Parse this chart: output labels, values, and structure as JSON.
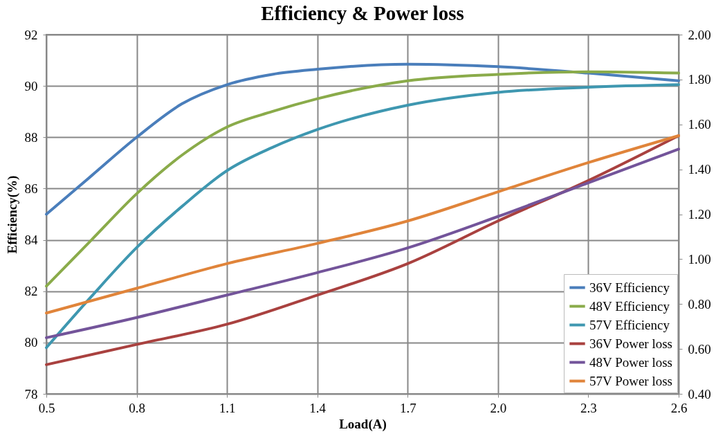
{
  "chart_data": {
    "type": "line",
    "title": "Efficiency & Power loss",
    "xlabel": "Load(A)",
    "ylabel": "Efficiency(%)",
    "x": [
      0.5,
      0.8,
      1.1,
      1.4,
      1.7,
      2.0,
      2.3,
      2.6
    ],
    "series": [
      {
        "name": "36V Efficiency",
        "color": "#4a7ebb",
        "x": [
          0.5,
          0.65,
          0.8,
          0.95,
          1.1,
          1.25,
          1.4,
          1.7,
          2.0,
          2.3,
          2.6
        ],
        "values": [
          85.0,
          86.5,
          88.0,
          89.3,
          90.05,
          90.45,
          90.65,
          90.85,
          90.75,
          90.5,
          90.2
        ]
      },
      {
        "name": "48V Efficiency",
        "color": "#8aab4a",
        "x": [
          0.5,
          0.65,
          0.8,
          0.95,
          1.1,
          1.25,
          1.4,
          1.7,
          2.0,
          2.3,
          2.6
        ],
        "values": [
          82.2,
          84.0,
          85.8,
          87.3,
          88.4,
          89.0,
          89.5,
          90.2,
          90.45,
          90.55,
          90.5
        ]
      },
      {
        "name": "57V Efficiency",
        "color": "#3e97b0",
        "x": [
          0.5,
          0.65,
          0.8,
          0.95,
          1.1,
          1.25,
          1.4,
          1.7,
          2.0,
          2.3,
          2.6
        ],
        "values": [
          79.8,
          81.8,
          83.7,
          85.3,
          86.7,
          87.6,
          88.3,
          89.25,
          89.75,
          89.95,
          90.05
        ]
      },
      {
        "name": "36V Power loss",
        "color": "#a9413f",
        "axis": "y2",
        "values": [
          0.53,
          0.62,
          0.71,
          0.84,
          0.98,
          1.17,
          1.35,
          1.55
        ]
      },
      {
        "name": "48V Power loss",
        "color": "#73549a",
        "axis": "y2",
        "values": [
          0.65,
          0.74,
          0.84,
          0.94,
          1.05,
          1.19,
          1.34,
          1.49
        ]
      },
      {
        "name": "57V Power loss",
        "color": "#e0843a",
        "axis": "y2",
        "values": [
          0.76,
          0.87,
          0.98,
          1.07,
          1.17,
          1.3,
          1.43,
          1.55
        ]
      }
    ],
    "xlim": [
      0.5,
      2.6
    ],
    "xticks": [
      0.5,
      0.8,
      1.1,
      1.4,
      1.7,
      {
        "value": 2.0,
        "label": "2.0"
      },
      2.3,
      2.6
    ],
    "ylim": [
      78,
      92
    ],
    "yticks": [
      78,
      80,
      82,
      84,
      86,
      88,
      90,
      92
    ],
    "y2lim": [
      0.4,
      2.0
    ],
    "y2ticks": [
      {
        "value": 0.4,
        "label": "0.40"
      },
      {
        "value": 0.6,
        "label": "0.60"
      },
      {
        "value": 0.8,
        "label": "0.80"
      },
      {
        "value": 1.0,
        "label": "1.00"
      },
      {
        "value": 1.2,
        "label": "1.20"
      },
      {
        "value": 1.4,
        "label": "1.40"
      },
      {
        "value": 1.6,
        "label": "1.60"
      },
      {
        "value": 1.8,
        "label": "1.80"
      },
      {
        "value": 2.0,
        "label": "2.00"
      }
    ],
    "grid": true,
    "legend": "bottom right",
    "marker": "none",
    "line_style": "solid"
  }
}
